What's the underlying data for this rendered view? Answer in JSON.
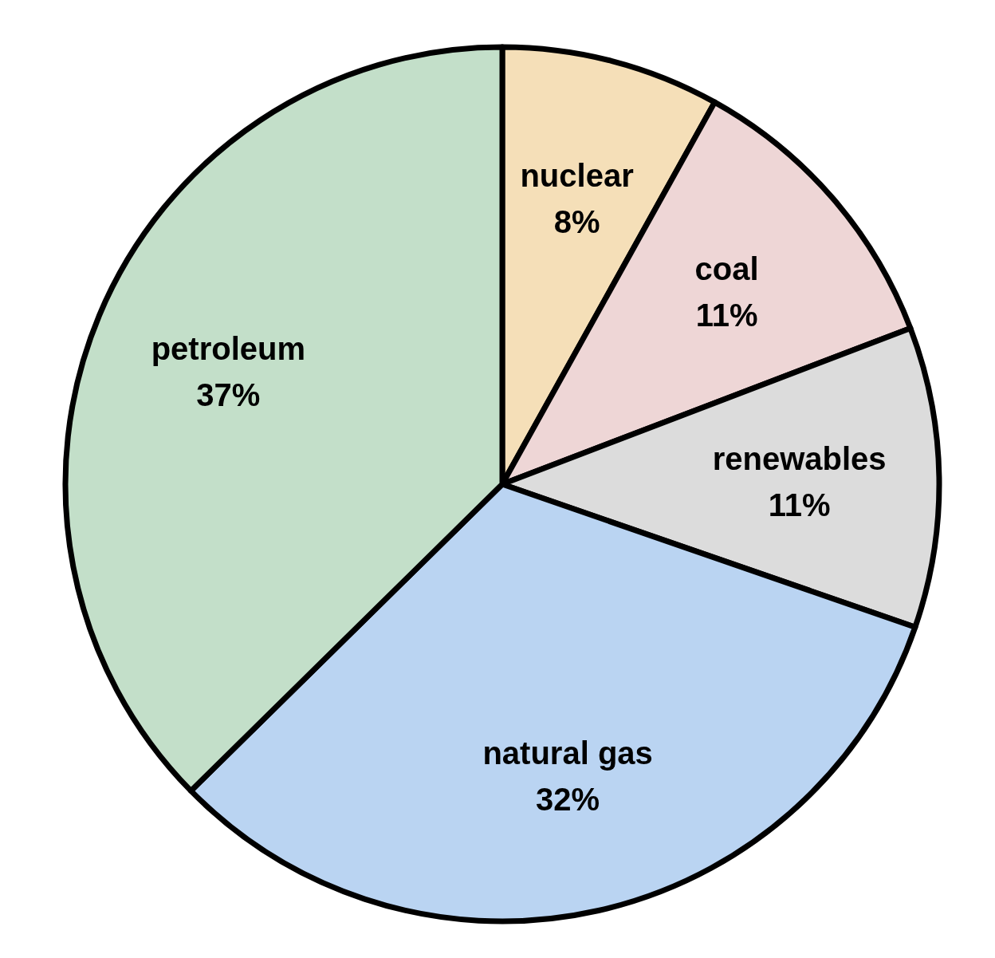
{
  "chart_data": {
    "type": "pie",
    "categories": [
      "nuclear",
      "coal",
      "renewables",
      "natural gas",
      "petroleum"
    ],
    "values": [
      8,
      11,
      11,
      32,
      37
    ],
    "value_labels": [
      "8%",
      "11%",
      "11%",
      "32%",
      "37%"
    ],
    "colors": [
      "#f5dfb8",
      "#eed6d6",
      "#dcdcdc",
      "#bad4f2",
      "#c3dfc9"
    ]
  }
}
